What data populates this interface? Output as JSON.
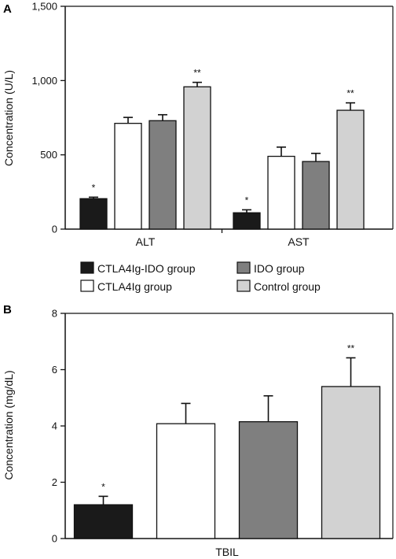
{
  "colors": {
    "axis": "#111111",
    "CTLA4Ig-IDO group": "#1a1a1a",
    "CTLA4Ig group": "#ffffff",
    "IDO group": "#7f7f7f",
    "Control group": "#d2d2d2"
  },
  "legend": {
    "items": [
      "CTLA4Ig-IDO group",
      "IDO group",
      "CTLA4Ig group",
      "Control group"
    ]
  },
  "chart_data": [
    {
      "panel": "A",
      "type": "bar",
      "ylabel": "Concentration (U/L)",
      "ylim": [
        0,
        1500
      ],
      "yticks": [
        0,
        500,
        1000,
        1500
      ],
      "ytick_labels": [
        "0",
        "500",
        "1,000",
        "1,500"
      ],
      "categories": [
        "ALT",
        "AST"
      ],
      "series": [
        {
          "name": "CTLA4Ig-IDO group",
          "values": [
            205,
            110
          ],
          "errors": [
            10,
            20
          ],
          "sig": [
            "*",
            "*"
          ]
        },
        {
          "name": "CTLA4Ig group",
          "values": [
            712,
            490
          ],
          "errors": [
            40,
            62
          ],
          "sig": [
            "",
            ""
          ]
        },
        {
          "name": "IDO group",
          "values": [
            730,
            455
          ],
          "errors": [
            40,
            55
          ],
          "sig": [
            "",
            ""
          ]
        },
        {
          "name": "Control group",
          "values": [
            958,
            800
          ],
          "errors": [
            30,
            50
          ],
          "sig": [
            "**",
            "**"
          ]
        }
      ]
    },
    {
      "panel": "B",
      "type": "bar",
      "ylabel": "Concentration (mg/dL)",
      "ylim": [
        0,
        8
      ],
      "yticks": [
        0,
        2,
        4,
        6,
        8
      ],
      "ytick_labels": [
        "0",
        "2",
        "4",
        "6",
        "8"
      ],
      "categories": [
        "TBIL"
      ],
      "series": [
        {
          "name": "CTLA4Ig-IDO group",
          "values": [
            1.2
          ],
          "errors": [
            0.3
          ],
          "sig": [
            "*"
          ]
        },
        {
          "name": "CTLA4Ig group",
          "values": [
            4.08
          ],
          "errors": [
            0.72
          ],
          "sig": [
            ""
          ]
        },
        {
          "name": "IDO group",
          "values": [
            4.15
          ],
          "errors": [
            0.92
          ],
          "sig": [
            ""
          ]
        },
        {
          "name": "Control group",
          "values": [
            5.4
          ],
          "errors": [
            1.02
          ],
          "sig": [
            "**"
          ]
        }
      ]
    }
  ]
}
